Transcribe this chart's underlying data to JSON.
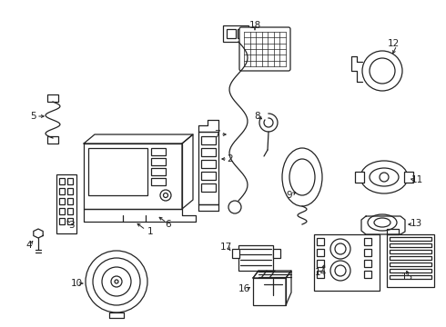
{
  "background_color": "#ffffff",
  "line_color": "#222222",
  "line_width": 0.9,
  "label_fontsize": 7.5,
  "fig_w": 4.9,
  "fig_h": 3.6,
  "dpi": 100
}
